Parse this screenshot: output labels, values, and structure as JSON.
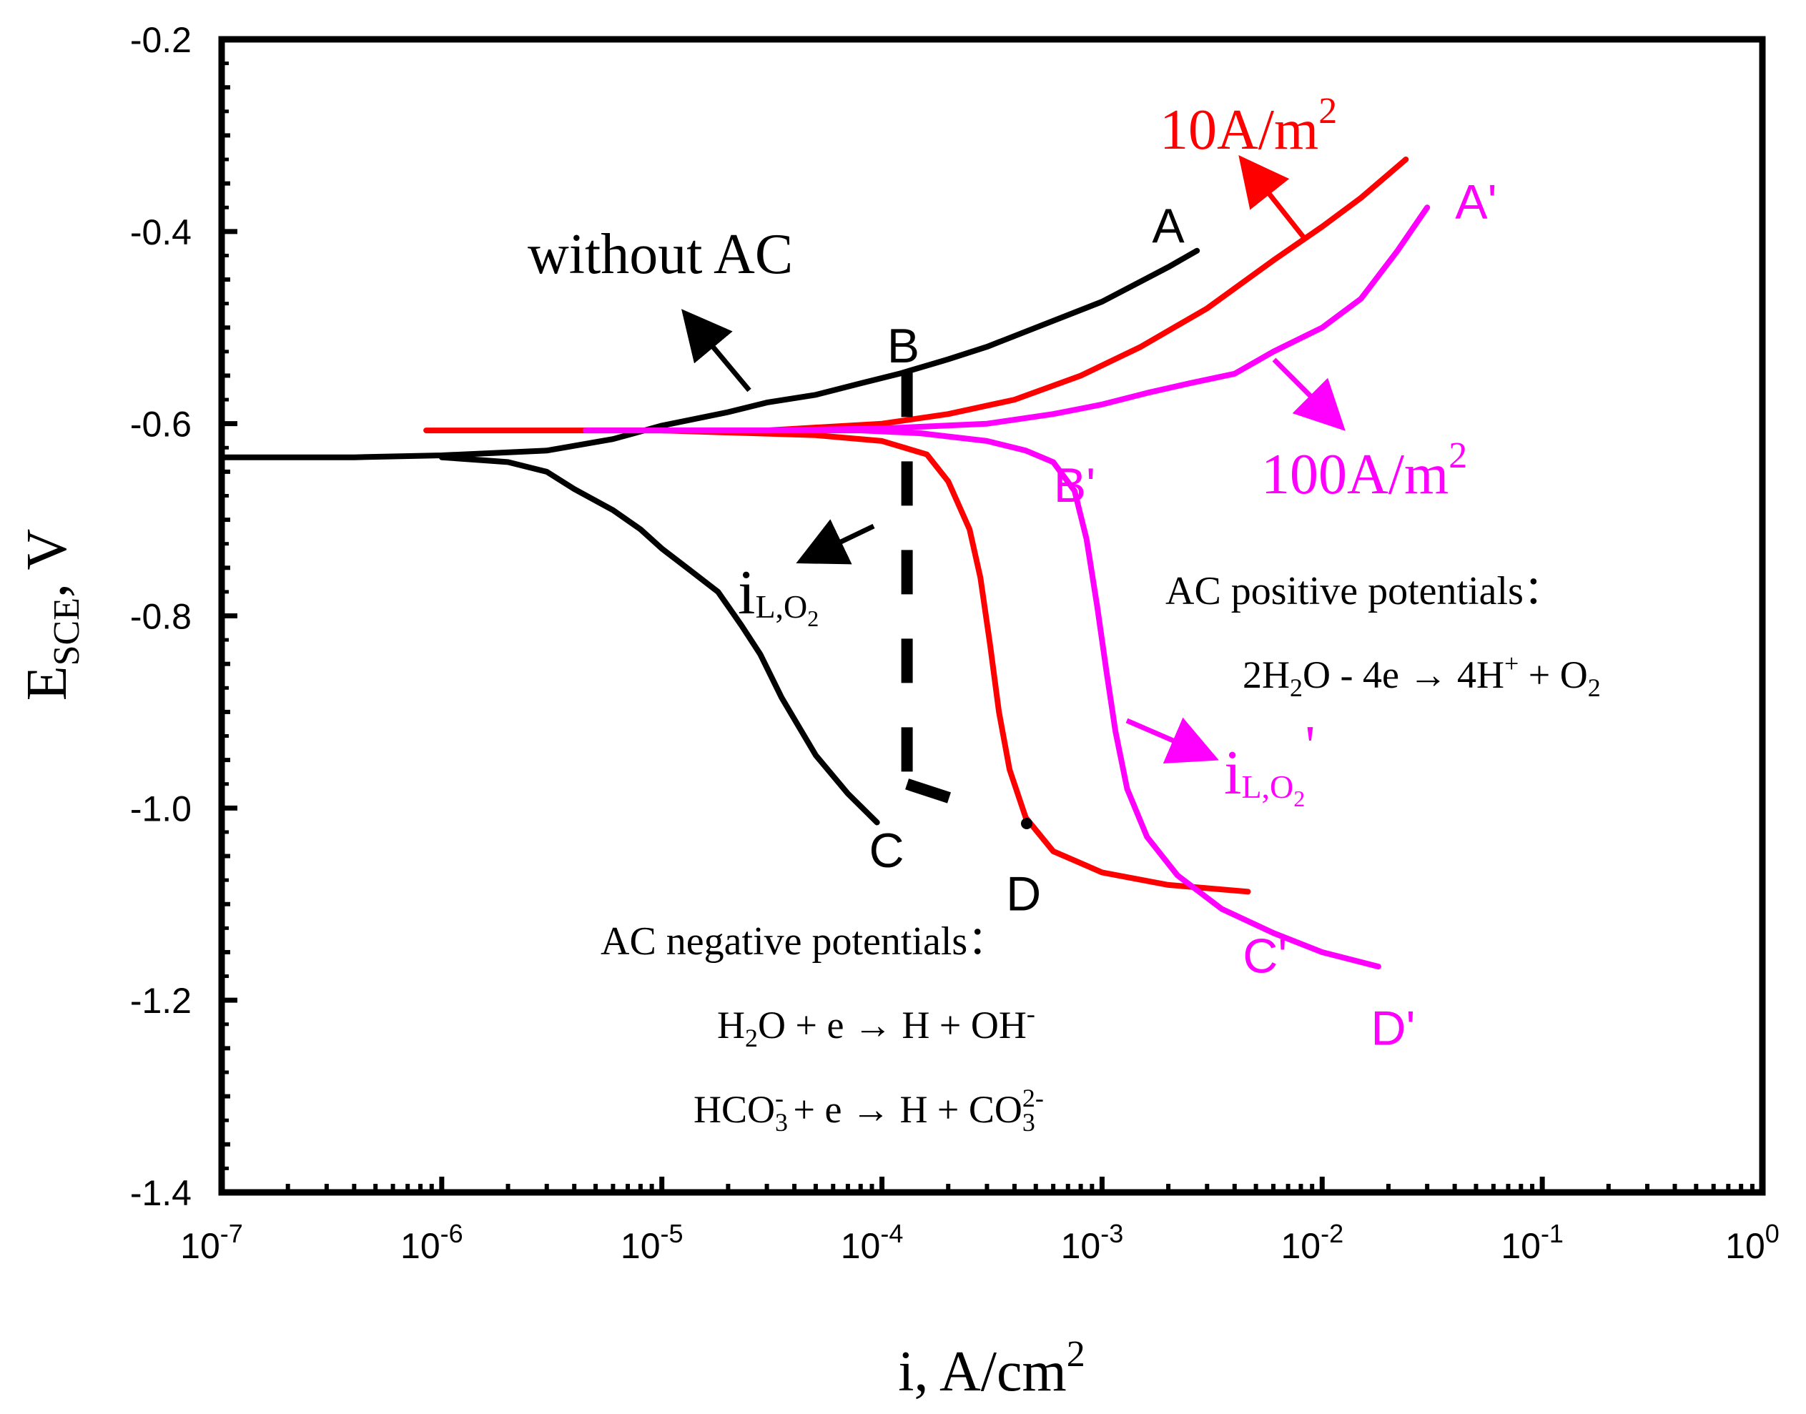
{
  "chart_data": {
    "type": "line",
    "title": "",
    "xlabel": "i, A/cm",
    "xlabel_sup": "2",
    "ylabel_main": "E",
    "ylabel_sub": "SCE",
    "ylabel_tail": ", V",
    "xscale": "log",
    "xlim": [
      1e-07,
      1
    ],
    "ylim": [
      -1.4,
      -0.2
    ],
    "x_tick_base": "10",
    "x_ticks": [
      {
        "value": 1e-07,
        "exp": "-7"
      },
      {
        "value": 1e-06,
        "exp": "-6"
      },
      {
        "value": 1e-05,
        "exp": "-5"
      },
      {
        "value": 0.0001,
        "exp": "-4"
      },
      {
        "value": 0.001,
        "exp": "-3"
      },
      {
        "value": 0.01,
        "exp": "-2"
      },
      {
        "value": 0.1,
        "exp": "-1"
      },
      {
        "value": 1,
        "exp": "0"
      }
    ],
    "y_ticks": [
      {
        "value": -0.2,
        "label": "-0.2"
      },
      {
        "value": -0.4,
        "label": "-0.4"
      },
      {
        "value": -0.6,
        "label": "-0.6"
      },
      {
        "value": -0.8,
        "label": "-0.8"
      },
      {
        "value": -1.0,
        "label": "-1.0"
      },
      {
        "value": -1.2,
        "label": "-1.2"
      },
      {
        "value": -1.4,
        "label": "-1.4"
      }
    ],
    "series": [
      {
        "name": "without AC",
        "color": "#000000",
        "points": [
          [
            1e-07,
            -0.635
          ],
          [
            4e-07,
            -0.635
          ],
          [
            1e-06,
            -0.633
          ],
          [
            3e-06,
            -0.628
          ],
          [
            6e-06,
            -0.616
          ],
          [
            1e-05,
            -0.602
          ],
          [
            2e-05,
            -0.588
          ],
          [
            3e-05,
            -0.578
          ],
          [
            5e-05,
            -0.57
          ],
          [
            8e-05,
            -0.558
          ],
          [
            0.00012,
            -0.548
          ],
          [
            0.0002,
            -0.533
          ],
          [
            0.0003,
            -0.52
          ],
          [
            0.0005,
            -0.5
          ],
          [
            0.001,
            -0.473
          ],
          [
            0.002,
            -0.437
          ],
          [
            0.0027,
            -0.42
          ]
        ]
      },
      {
        "name": "without AC cathodic",
        "color": "#000000",
        "points": [
          [
            1e-06,
            -0.635
          ],
          [
            2e-06,
            -0.64
          ],
          [
            3e-06,
            -0.65
          ],
          [
            4e-06,
            -0.668
          ],
          [
            6e-06,
            -0.69
          ],
          [
            8e-06,
            -0.71
          ],
          [
            1e-05,
            -0.73
          ],
          [
            1.3e-05,
            -0.75
          ],
          [
            1.8e-05,
            -0.775
          ],
          [
            2.3e-05,
            -0.81
          ],
          [
            2.8e-05,
            -0.84
          ],
          [
            3.5e-05,
            -0.885
          ],
          [
            5e-05,
            -0.945
          ],
          [
            7e-05,
            -0.985
          ],
          [
            9.5e-05,
            -1.015
          ]
        ]
      },
      {
        "name": "10A/m2 anodic",
        "color": "#ff0000",
        "points": [
          [
            8.5e-07,
            -0.607
          ],
          [
            5e-06,
            -0.607
          ],
          [
            3e-05,
            -0.607
          ],
          [
            0.0001,
            -0.6
          ],
          [
            0.0002,
            -0.59
          ],
          [
            0.0004,
            -0.575
          ],
          [
            0.0008,
            -0.55
          ],
          [
            0.0015,
            -0.52
          ],
          [
            0.003,
            -0.48
          ],
          [
            0.006,
            -0.43
          ],
          [
            0.01,
            -0.395
          ],
          [
            0.015,
            -0.365
          ],
          [
            0.024,
            -0.325
          ]
        ]
      },
      {
        "name": "10A/m2 cathodic",
        "color": "#ff0000",
        "points": [
          [
            1e-05,
            -0.607
          ],
          [
            5e-05,
            -0.612
          ],
          [
            0.0001,
            -0.618
          ],
          [
            0.00016,
            -0.632
          ],
          [
            0.0002,
            -0.66
          ],
          [
            0.00025,
            -0.71
          ],
          [
            0.00028,
            -0.76
          ],
          [
            0.00031,
            -0.83
          ],
          [
            0.00034,
            -0.9
          ],
          [
            0.00038,
            -0.96
          ],
          [
            0.00045,
            -1.01
          ],
          [
            0.0006,
            -1.045
          ],
          [
            0.001,
            -1.067
          ],
          [
            0.002,
            -1.08
          ],
          [
            0.0046,
            -1.087
          ]
        ]
      },
      {
        "name": "100A/m2 anodic",
        "color": "#ff00ff",
        "points": [
          [
            4.5e-06,
            -0.607
          ],
          [
            3e-05,
            -0.607
          ],
          [
            0.0001,
            -0.605
          ],
          [
            0.0003,
            -0.6
          ],
          [
            0.0006,
            -0.59
          ],
          [
            0.001,
            -0.58
          ],
          [
            0.0016,
            -0.568
          ],
          [
            0.0025,
            -0.558
          ],
          [
            0.004,
            -0.548
          ],
          [
            0.006,
            -0.525
          ],
          [
            0.01,
            -0.5
          ],
          [
            0.015,
            -0.47
          ],
          [
            0.022,
            -0.42
          ],
          [
            0.03,
            -0.375
          ]
        ]
      },
      {
        "name": "100A/m2 cathodic",
        "color": "#ff00ff",
        "points": [
          [
            1e-05,
            -0.607
          ],
          [
            8e-05,
            -0.607
          ],
          [
            0.00015,
            -0.61
          ],
          [
            0.0003,
            -0.618
          ],
          [
            0.00045,
            -0.628
          ],
          [
            0.0006,
            -0.64
          ],
          [
            0.00075,
            -0.67
          ],
          [
            0.00085,
            -0.72
          ],
          [
            0.00095,
            -0.79
          ],
          [
            0.00105,
            -0.86
          ],
          [
            0.00115,
            -0.92
          ],
          [
            0.0013,
            -0.98
          ],
          [
            0.0016,
            -1.03
          ],
          [
            0.0022,
            -1.07
          ],
          [
            0.0035,
            -1.105
          ],
          [
            0.006,
            -1.13
          ],
          [
            0.01,
            -1.15
          ],
          [
            0.018,
            -1.165
          ]
        ]
      }
    ],
    "dashed_segments": [
      {
        "name": "B-C dashed",
        "points": [
          [
            0.00013,
            -0.547
          ],
          [
            0.00013,
            -0.975
          ]
        ]
      },
      {
        "name": "C-D dashed",
        "points": [
          [
            0.00013,
            -0.975
          ],
          [
            0.00024,
            -0.995
          ]
        ]
      }
    ],
    "point_labels": [
      {
        "text": "A",
        "x": 0.002,
        "y": -0.395,
        "color": "#000000"
      },
      {
        "text": "B",
        "x": 0.000125,
        "y": -0.52,
        "color": "#000000"
      },
      {
        "text": "C",
        "x": 0.000105,
        "y": -1.045,
        "color": "#000000"
      },
      {
        "text": "D",
        "x": 0.00044,
        "y": -1.09,
        "color": "#000000"
      },
      {
        "text": "A'",
        "x": 0.05,
        "y": -0.37,
        "color": "#ff00ff"
      },
      {
        "text": "B'",
        "x": 0.00075,
        "y": -0.665,
        "color": "#ff00ff"
      },
      {
        "text": "C'",
        "x": 0.0055,
        "y": -1.155,
        "color": "#ff00ff"
      },
      {
        "text": "D'",
        "x": 0.021,
        "y": -1.23,
        "color": "#ff00ff"
      }
    ],
    "annotations": {
      "without_ac": "without AC",
      "ac10": "10A/m",
      "ac10_sup": "2",
      "ac100": "100A/m",
      "ac100_sup": "2",
      "il_i": "i",
      "il_sub": "L,O",
      "il_sub2": "2",
      "il_prime": "'",
      "pos_title": "AC positive potentials：",
      "pos_eq_a": "2H",
      "pos_eq_a_sub": "2",
      "pos_eq_b": "O - 4e → 4H",
      "pos_eq_b_sup": "+",
      "pos_eq_c": " + O",
      "pos_eq_c_sub": "2",
      "neg_title": "AC negative potentials：",
      "neg_eq1_a": "H",
      "neg_eq1_a_sub": "2",
      "neg_eq1_b": "O + e → H + OH",
      "neg_eq1_b_sup": "-",
      "neg_eq2_a": "HCO",
      "neg_eq2_a_sub": "3",
      "neg_eq2_a_sup": "-",
      "neg_eq2_b": " + e  → H + CO",
      "neg_eq2_b_sub": "3",
      "neg_eq2_b_sup": "2-"
    }
  }
}
